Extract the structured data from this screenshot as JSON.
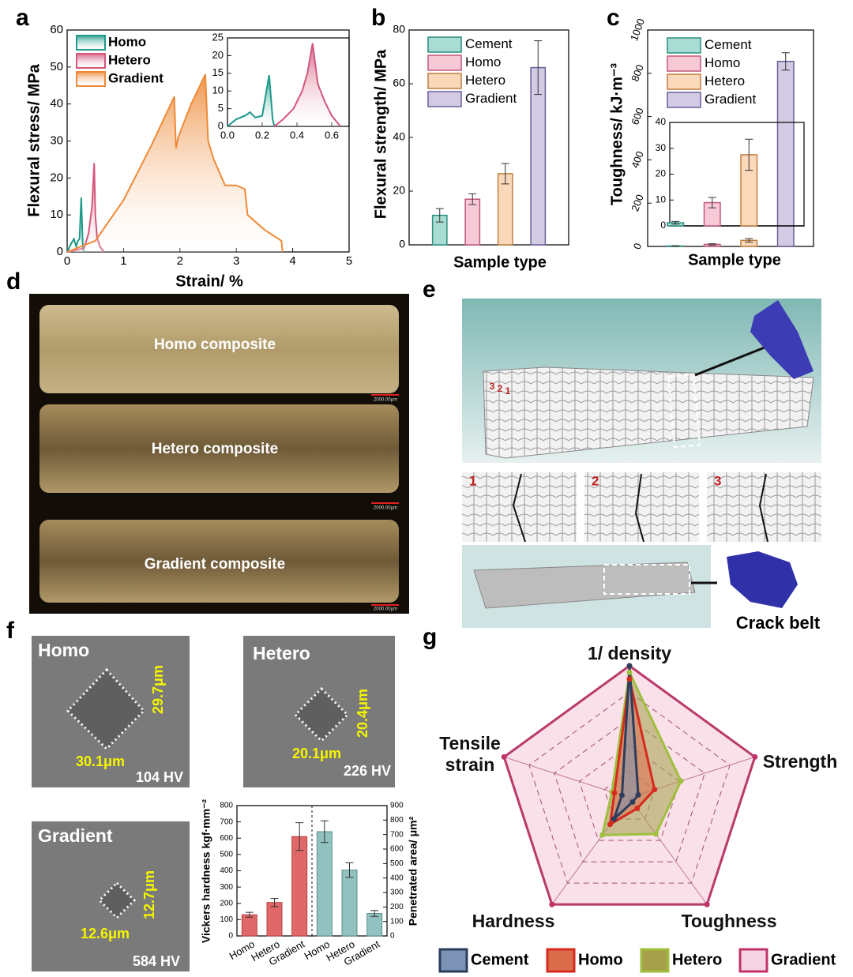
{
  "chart_data": [
    {
      "type": "area",
      "panel": "a",
      "xlabel": "Strain/ %",
      "ylabel": "Flexural stress/ MPa",
      "xlim": [
        0,
        5
      ],
      "xticks": [
        0,
        1,
        2,
        3,
        4,
        5
      ],
      "ylim": [
        0,
        60
      ],
      "yticks": [
        0,
        10,
        20,
        30,
        40,
        50,
        60
      ],
      "legend": "upper left",
      "series": [
        {
          "name": "Homo",
          "color": "#1f9a8a",
          "x": [
            0,
            0.08,
            0.12,
            0.16,
            0.19,
            0.22,
            0.25,
            0.27,
            0.28,
            0.3
          ],
          "values": [
            0,
            2.5,
            3.5,
            1.5,
            3,
            3.5,
            14.7,
            5,
            1,
            0
          ]
        },
        {
          "name": "Hetero",
          "color": "#d4577c",
          "x": [
            0,
            0.3,
            0.38,
            0.44,
            0.48,
            0.5,
            0.53,
            0.58,
            0.65
          ],
          "values": [
            0,
            1,
            5,
            12,
            24,
            10,
            4,
            1.5,
            0
          ]
        },
        {
          "name": "Gradient",
          "color": "#ee8a38",
          "x": [
            0,
            0.5,
            1,
            1.5,
            1.9,
            1.93,
            1.97,
            2.2,
            2.45,
            2.5,
            2.6,
            2.8,
            3,
            3.15,
            3.2,
            3.5,
            3.8,
            3.82
          ],
          "values": [
            0,
            3,
            14,
            29,
            42,
            28,
            31,
            40,
            48,
            30,
            25,
            18,
            18,
            17,
            10,
            6,
            3,
            0
          ]
        }
      ]
    },
    {
      "type": "area",
      "xlim": [
        0,
        0.7
      ],
      "xticks": [
        {
          "value": 0,
          "label": "0.0"
        },
        0.2,
        0.4,
        0.6
      ],
      "ylim": [
        0,
        25
      ],
      "yticks": [
        0,
        5,
        10,
        15,
        20,
        25
      ],
      "series": [
        {
          "color": "#1f9a8a",
          "x": [
            0,
            0.05,
            0.1,
            0.13,
            0.16,
            0.2,
            0.24,
            0.26,
            0.27
          ],
          "values": [
            0,
            2,
            3,
            4,
            2.5,
            3,
            14.5,
            2,
            0
          ]
        },
        {
          "color": "#d4577c",
          "x": [
            0.27,
            0.32,
            0.38,
            0.43,
            0.46,
            0.49,
            0.52,
            0.56,
            0.6,
            0.65
          ],
          "values": [
            0,
            2,
            5,
            10,
            15,
            23.5,
            12,
            7,
            3,
            0
          ]
        }
      ]
    },
    {
      "type": "bar",
      "panel": "b",
      "xlabel": "Sample type",
      "ylabel": "Flexural strength/ MPa",
      "ylim": [
        0,
        80
      ],
      "yticks": [
        0,
        20,
        40,
        60,
        80
      ],
      "legend": "upper left",
      "series": [
        {
          "name": "Cement",
          "color": "#a9ddd4",
          "edge": "#2a8f80",
          "values": [
            11
          ],
          "errors": [
            2.5
          ]
        },
        {
          "name": "Homo",
          "color": "#f7c9d7",
          "edge": "#c05a7a",
          "values": [
            17
          ],
          "errors": [
            2
          ]
        },
        {
          "name": "Hetero",
          "color": "#fad9ba",
          "edge": "#c07f40",
          "values": [
            26.5
          ],
          "errors": [
            3.8
          ]
        },
        {
          "name": "Gradient",
          "color": "#d3cbe4",
          "edge": "#6b5f9a",
          "values": [
            66
          ],
          "errors": [
            10
          ]
        }
      ]
    },
    {
      "type": "bar",
      "panel": "c",
      "xlabel": "Sample type",
      "ylabel": "Toughness/ kJ·m⁻³",
      "ylim": [
        0,
        1000
      ],
      "yticks": [
        0,
        200,
        400,
        600,
        800,
        1000
      ],
      "legend": "upper left",
      "series": [
        {
          "name": "Cement",
          "color": "#a9ddd4",
          "edge": "#2a8f80",
          "values": [
            2
          ],
          "errors": [
            1
          ]
        },
        {
          "name": "Homo",
          "color": "#f7c9d7",
          "edge": "#c05a7a",
          "values": [
            9.5
          ],
          "errors": [
            3
          ]
        },
        {
          "name": "Hetero",
          "color": "#fad9ba",
          "edge": "#c07f40",
          "values": [
            28
          ],
          "errors": [
            8
          ]
        },
        {
          "name": "Gradient",
          "color": "#d3cbe4",
          "edge": "#6b5f9a",
          "values": [
            855
          ],
          "errors": [
            40
          ]
        }
      ]
    },
    {
      "type": "bar",
      "ylim": [
        0,
        40
      ],
      "yticks": [
        0,
        10,
        20,
        30,
        40
      ],
      "series": [
        {
          "color": "#a9ddd4",
          "edge": "#2a8f80",
          "values": [
            1.2
          ],
          "errors": [
            0.5
          ]
        },
        {
          "color": "#f7c9d7",
          "edge": "#c05a7a",
          "values": [
            9
          ],
          "errors": [
            2
          ]
        },
        {
          "color": "#fad9ba",
          "edge": "#c07f40",
          "values": [
            27.5
          ],
          "errors": [
            6
          ]
        }
      ]
    },
    {
      "type": "bar",
      "categories": [
        "Homo",
        "Hetero",
        "Gradient",
        "Homo",
        "Hetero",
        "Gradient"
      ],
      "ylabel": "Vickers hardness kgf·mm⁻²",
      "y2label": "Penetrated area/ μm²",
      "ylim": [
        0,
        800
      ],
      "yticks": [
        0,
        100,
        200,
        300,
        400,
        500,
        600,
        700,
        800
      ],
      "y2lim": [
        0,
        900
      ],
      "y2ticks": [
        0,
        100,
        200,
        300,
        400,
        500,
        600,
        700,
        800,
        900
      ],
      "series": [
        {
          "color": "#e06868",
          "edge": "#b84040",
          "values": [
            130,
            205,
            610,
            null,
            null,
            null
          ],
          "errors": [
            15,
            25,
            85,
            null,
            null,
            null
          ]
        },
        {
          "color": "#92c2c0",
          "edge": "#5a8f8c",
          "axis": "y2",
          "values": [
            null,
            null,
            null,
            720,
            455,
            155
          ],
          "errors": [
            null,
            null,
            null,
            75,
            50,
            20
          ]
        }
      ]
    },
    {
      "type": "radar",
      "panel": "g",
      "categories": [
        "1/ density",
        "Strength",
        "Toughness",
        "Hardness",
        "Tensile strain"
      ],
      "rlim": [
        0,
        1
      ],
      "rticks": [
        0.2,
        0.4,
        0.6,
        0.8,
        1
      ],
      "series": [
        {
          "name": "Cement",
          "color": "#7d93b5",
          "edge": "#2d3d5c",
          "values": [
            1,
            0.07,
            0.04,
            0.2,
            0.06
          ]
        },
        {
          "name": "Homo",
          "color": "#dc6d4c",
          "edge": "#d62a1e",
          "values": [
            0.9,
            0.2,
            0.1,
            0.25,
            0.12
          ]
        },
        {
          "name": "Hetero",
          "color": "#a6a04a",
          "edge": "#9fbf3e",
          "values": [
            0.95,
            0.41,
            0.34,
            0.35,
            0.14
          ]
        },
        {
          "name": "Gradient",
          "color": "#f6d3e0",
          "edge": "#c0336a",
          "values": [
            1,
            1,
            1,
            1,
            1
          ]
        }
      ]
    }
  ],
  "figure": {
    "d": {
      "panel": "d",
      "labels": [
        "Homo composite",
        "Hetero composite",
        "Gradient composite"
      ],
      "scale_bars": [
        "2000.00μm",
        "2000.00μm",
        "2000.00μm"
      ]
    },
    "e": {
      "panel": "e",
      "block_slices": [
        "3",
        "2",
        "1"
      ],
      "slices": [
        "1",
        "2",
        "3"
      ],
      "caption": "Crack belt"
    },
    "f": {
      "panel": "f",
      "images": [
        {
          "name": "Homo",
          "width": "30.1μm",
          "height": "29.7μm",
          "hardness": "104 HV"
        },
        {
          "name": "Hetero",
          "width": "20.1μm",
          "height": "20.4μm",
          "hardness": "226 HV"
        },
        {
          "name": "Gradient",
          "width": "12.6μm",
          "height": "12.7μm",
          "hardness": "584 HV"
        }
      ]
    }
  }
}
